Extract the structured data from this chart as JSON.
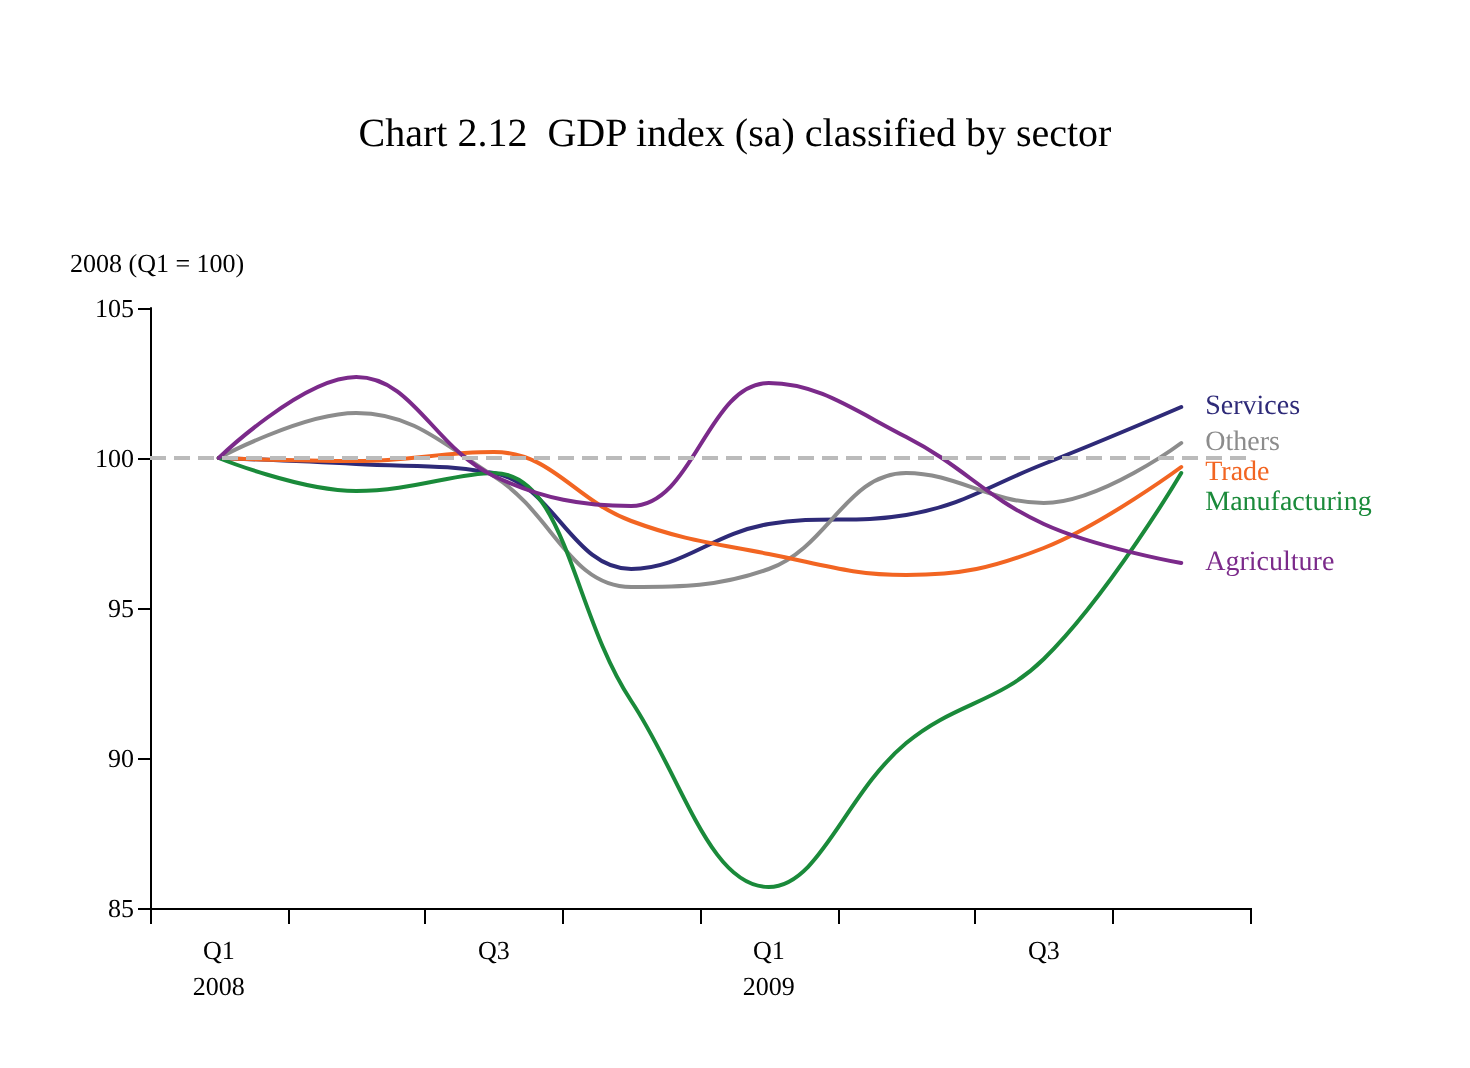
{
  "chart_data": {
    "type": "line",
    "title": "Chart 2.12  GDP index (sa) classified by sector",
    "ylabel": "2008 (Q1 = 100)",
    "categories": [
      "Q1\n2008",
      null,
      "Q3",
      null,
      "Q1\n2009",
      null,
      "Q3",
      null
    ],
    "series": [
      {
        "name": "Services",
        "color": "#2e2a78",
        "values": [
          100,
          99.8,
          99.5,
          96.3,
          97.8,
          98.1,
          99.8,
          101.7
        ]
      },
      {
        "name": "Others",
        "color": "#8c8c8c",
        "values": [
          100,
          101.5,
          99.4,
          95.7,
          96.3,
          99.5,
          98.5,
          100.5
        ]
      },
      {
        "name": "Trade",
        "color": "#f26522",
        "values": [
          100,
          99.9,
          100.2,
          97.9,
          96.8,
          96.1,
          97.0,
          99.7
        ]
      },
      {
        "name": "Manufacturing",
        "color": "#1a8a3a",
        "values": [
          100,
          98.9,
          99.5,
          91.9,
          85.7,
          90.5,
          93.3,
          99.5
        ]
      },
      {
        "name": "Agriculture",
        "color": "#7b2a8a",
        "values": [
          100,
          102.7,
          99.4,
          98.4,
          102.5,
          100.7,
          97.8,
          96.5
        ]
      }
    ],
    "ylim": [
      85,
      105
    ],
    "yticks": [
      85,
      90,
      95,
      100,
      105
    ],
    "grid": false,
    "legend": false,
    "marker": "none",
    "line_style": "solid",
    "ref_lines": [
      {
        "axis": "y",
        "value": 100,
        "color": "#bbbbbb",
        "line_style": "dashed"
      }
    ]
  }
}
